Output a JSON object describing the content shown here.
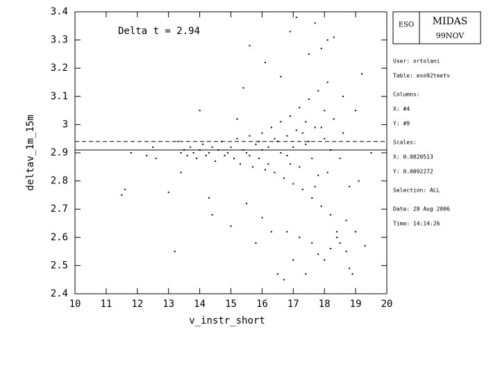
{
  "chart_data": {
    "type": "scatter",
    "annotation": "Delta t = 2.94",
    "x_label": "v_instr_short",
    "y_label": "deltav_1m_15m",
    "xlim": [
      10,
      20
    ],
    "ylim": [
      2.4,
      3.4
    ],
    "xticks": [
      10,
      11,
      12,
      13,
      14,
      15,
      16,
      17,
      18,
      19,
      20
    ],
    "yticks": [
      2.4,
      2.5,
      2.6,
      2.7,
      2.8,
      2.9,
      3,
      3.1,
      3.2,
      3.3,
      3.4
    ],
    "color": "#000000",
    "hlines": [
      {
        "value": 2.94,
        "style": "dashed"
      },
      {
        "value": 2.91,
        "style": "solid"
      }
    ],
    "x": [
      13.4,
      13.5,
      13.6,
      13.7,
      13.8,
      13.9,
      14.0,
      14.1,
      14.2,
      14.3,
      14.4,
      14.5,
      14.6,
      14.7,
      14.8,
      14.9,
      15.0,
      15.1,
      15.2,
      15.3,
      15.4,
      15.5,
      15.6,
      15.7,
      15.8,
      15.9,
      16.0,
      16.1,
      16.2,
      16.3,
      16.4,
      16.5,
      16.6,
      16.7,
      16.8,
      16.9,
      17.0,
      17.1,
      17.2,
      17.3,
      17.4,
      17.5,
      17.6,
      17.7,
      17.8,
      17.9,
      18.0,
      18.1,
      18.2,
      18.3,
      18.4,
      18.5,
      18.6,
      18.7,
      18.8,
      19.0,
      11.5,
      11.6,
      11.8,
      12.3,
      12.5,
      12.6,
      13.0,
      13.2,
      13.3,
      13.4,
      14.0,
      14.3,
      14.4,
      15.0,
      15.2,
      15.4,
      15.5,
      15.6,
      15.8,
      16.0,
      16.1,
      16.3,
      16.5,
      16.6,
      16.7,
      16.8,
      16.9,
      17.0,
      17.1,
      17.2,
      17.4,
      17.5,
      17.6,
      17.7,
      17.8,
      17.9,
      18.0,
      18.1,
      18.2,
      18.3,
      18.4,
      18.5,
      18.6,
      18.7,
      18.8,
      18.9,
      19.0,
      19.1,
      19.2,
      19.3,
      19.5,
      16.2,
      16.4,
      16.8,
      17.0,
      17.2,
      17.4,
      17.6,
      17.8,
      18.0,
      18.2,
      17.3,
      16.9,
      17.7,
      18.1,
      17.5,
      16.6,
      16.0,
      15.9,
      15.6,
      17.9
    ],
    "values": [
      2.9,
      2.91,
      2.89,
      2.92,
      2.9,
      2.88,
      2.91,
      2.93,
      2.89,
      2.9,
      2.92,
      2.87,
      2.91,
      2.94,
      2.89,
      2.9,
      2.92,
      2.88,
      2.95,
      2.86,
      2.91,
      2.9,
      2.96,
      2.85,
      2.93,
      2.88,
      2.97,
      2.84,
      2.92,
      2.99,
      2.83,
      2.94,
      3.01,
      2.81,
      2.96,
      3.03,
      2.79,
      2.98,
      3.06,
      2.77,
      2.93,
      3.09,
      2.74,
      2.99,
      3.12,
      2.71,
      2.95,
      3.15,
      2.68,
      3.02,
      2.62,
      2.88,
      2.97,
      2.66,
      2.78,
      3.05,
      2.75,
      2.77,
      2.9,
      2.89,
      2.92,
      2.88,
      2.76,
      2.55,
      2.94,
      2.83,
      3.05,
      2.74,
      2.68,
      2.64,
      3.02,
      3.13,
      2.72,
      3.28,
      2.58,
      2.67,
      3.22,
      2.62,
      2.47,
      3.17,
      2.45,
      2.62,
      3.33,
      2.52,
      3.38,
      2.6,
      2.47,
      3.25,
      2.58,
      3.36,
      2.54,
      3.27,
      2.52,
      3.3,
      2.56,
      3.31,
      2.6,
      2.58,
      3.1,
      2.55,
      2.49,
      2.47,
      2.62,
      2.8,
      3.18,
      2.57,
      2.9,
      2.86,
      2.95,
      2.89,
      2.92,
      2.85,
      3.01,
      2.88,
      2.82,
      3.05,
      2.91,
      2.97,
      2.86,
      2.78,
      2.83,
      2.94,
      2.9,
      2.91,
      2.94,
      2.89,
      2.99
    ]
  },
  "panel": {
    "logo": "ESO",
    "system": "MIDAS",
    "version": "99NOV",
    "lines": [
      "User: ortolani",
      "Table: eso92teetv",
      "Columns:",
      "X: #4",
      "Y: #9",
      "Scales:",
      "X: 0.0820513",
      "Y: 0.0092272",
      "Selection: ALL",
      "Date: 28 Aug 2006",
      "Time: 14:14:26"
    ]
  }
}
